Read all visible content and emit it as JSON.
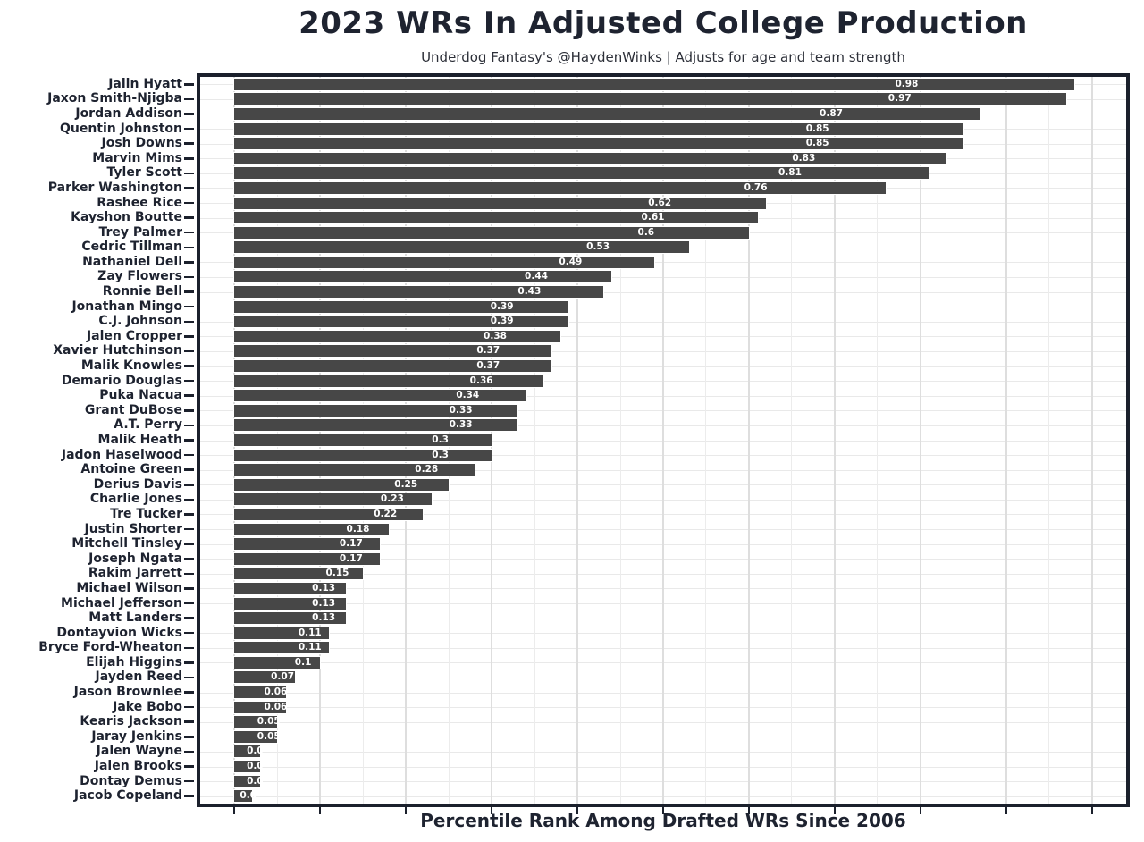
{
  "title": "2023 WRs In Adjusted College Production",
  "subtitle": "Underdog Fantasy's @HaydenWinks | Adjusts for age and team strength",
  "xlabel": "Percentile Rank Among Drafted WRs Since 2006",
  "colors": {
    "bar_fill": "#474747",
    "bar_label": "#ffffff",
    "text": "#1e2330",
    "plot_border": "#1b202c",
    "grid_minor": "#ececec",
    "grid_major": "#dedede",
    "background": "#ffffff"
  },
  "chart_data": {
    "type": "bar",
    "orientation": "horizontal",
    "title": "2023 WRs In Adjusted College Production",
    "subtitle": "Underdog Fantasy's @HaydenWinks | Adjusts for age and team strength",
    "xlabel": "Percentile Rank Among Drafted WRs Since 2006",
    "ylabel": "",
    "xlim": [
      -0.04,
      1.04
    ],
    "x_tick_step": 0.1,
    "x_minor_grid_step": 0.05,
    "x_tick_labels_shown": false,
    "grid": "on",
    "legend": "none",
    "bar_label_position_fraction": 0.8,
    "players": [
      {
        "name": "Jalin Hyatt",
        "label": "0.98",
        "value": 0.98
      },
      {
        "name": "Jaxon Smith-Njigba",
        "label": "0.97",
        "value": 0.97
      },
      {
        "name": "Jordan Addison",
        "label": "0.87",
        "value": 0.87
      },
      {
        "name": "Quentin Johnston",
        "label": "0.85",
        "value": 0.85
      },
      {
        "name": "Josh Downs",
        "label": "0.85",
        "value": 0.85
      },
      {
        "name": "Marvin Mims",
        "label": "0.83",
        "value": 0.83
      },
      {
        "name": "Tyler Scott",
        "label": "0.81",
        "value": 0.81
      },
      {
        "name": "Parker Washington",
        "label": "0.76",
        "value": 0.76
      },
      {
        "name": "Rashee Rice",
        "label": "0.62",
        "value": 0.62
      },
      {
        "name": "Kayshon Boutte",
        "label": "0.61",
        "value": 0.61
      },
      {
        "name": "Trey Palmer",
        "label": "0.6",
        "value": 0.6
      },
      {
        "name": "Cedric Tillman",
        "label": "0.53",
        "value": 0.53
      },
      {
        "name": "Nathaniel Dell",
        "label": "0.49",
        "value": 0.49
      },
      {
        "name": "Zay Flowers",
        "label": "0.44",
        "value": 0.44
      },
      {
        "name": "Ronnie Bell",
        "label": "0.43",
        "value": 0.43
      },
      {
        "name": "Jonathan Mingo",
        "label": "0.39",
        "value": 0.39
      },
      {
        "name": "C.J. Johnson",
        "label": "0.39",
        "value": 0.39
      },
      {
        "name": "Jalen Cropper",
        "label": "0.38",
        "value": 0.38
      },
      {
        "name": "Xavier Hutchinson",
        "label": "0.37",
        "value": 0.37
      },
      {
        "name": "Malik Knowles",
        "label": "0.37",
        "value": 0.37
      },
      {
        "name": "Demario Douglas",
        "label": "0.36",
        "value": 0.36
      },
      {
        "name": "Puka Nacua",
        "label": "0.34",
        "value": 0.34
      },
      {
        "name": "Grant DuBose",
        "label": "0.33",
        "value": 0.33
      },
      {
        "name": "A.T. Perry",
        "label": "0.33",
        "value": 0.33
      },
      {
        "name": "Malik Heath",
        "label": "0.3",
        "value": 0.3
      },
      {
        "name": "Jadon Haselwood",
        "label": "0.3",
        "value": 0.3
      },
      {
        "name": "Antoine Green",
        "label": "0.28",
        "value": 0.28
      },
      {
        "name": "Derius Davis",
        "label": "0.25",
        "value": 0.25
      },
      {
        "name": "Charlie Jones",
        "label": "0.23",
        "value": 0.23
      },
      {
        "name": "Tre Tucker",
        "label": "0.22",
        "value": 0.22
      },
      {
        "name": "Justin Shorter",
        "label": "0.18",
        "value": 0.18
      },
      {
        "name": "Mitchell Tinsley",
        "label": "0.17",
        "value": 0.17
      },
      {
        "name": "Joseph Ngata",
        "label": "0.17",
        "value": 0.17
      },
      {
        "name": "Rakim Jarrett",
        "label": "0.15",
        "value": 0.15
      },
      {
        "name": "Michael Wilson",
        "label": "0.13",
        "value": 0.13
      },
      {
        "name": "Michael Jefferson",
        "label": "0.13",
        "value": 0.13
      },
      {
        "name": "Matt Landers",
        "label": "0.13",
        "value": 0.13
      },
      {
        "name": "Dontayvion Wicks",
        "label": "0.11",
        "value": 0.11
      },
      {
        "name": "Bryce Ford-Wheaton",
        "label": "0.11",
        "value": 0.11
      },
      {
        "name": "Elijah Higgins",
        "label": "0.1",
        "value": 0.1
      },
      {
        "name": "Jayden Reed",
        "label": "0.07",
        "value": 0.07
      },
      {
        "name": "Jason Brownlee",
        "label": "0.06",
        "value": 0.06
      },
      {
        "name": "Jake Bobo",
        "label": "0.06",
        "value": 0.06
      },
      {
        "name": "Kearis Jackson",
        "label": "0.05",
        "value": 0.05
      },
      {
        "name": "Jaray Jenkins",
        "label": "0.05",
        "value": 0.05
      },
      {
        "name": "Jalen Wayne",
        "label": "0.0",
        "value": 0.03
      },
      {
        "name": "Jalen Brooks",
        "label": "0.0",
        "value": 0.03
      },
      {
        "name": "Dontay Demus",
        "label": "0.0",
        "value": 0.03
      },
      {
        "name": "Jacob Copeland",
        "label": "0.0",
        "value": 0.02
      }
    ]
  }
}
